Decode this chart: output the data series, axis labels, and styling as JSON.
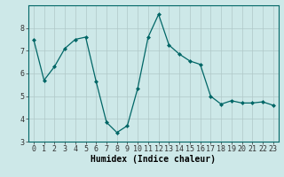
{
  "x": [
    0,
    1,
    2,
    3,
    4,
    5,
    6,
    7,
    8,
    9,
    10,
    11,
    12,
    13,
    14,
    15,
    16,
    17,
    18,
    19,
    20,
    21,
    22,
    23
  ],
  "y": [
    7.5,
    5.7,
    6.3,
    7.1,
    7.5,
    7.6,
    5.65,
    3.85,
    3.4,
    3.7,
    5.35,
    7.6,
    8.6,
    7.25,
    6.85,
    6.55,
    6.4,
    5.0,
    4.65,
    4.8,
    4.7,
    4.7,
    4.75,
    4.6
  ],
  "xlabel": "Humidex (Indice chaleur)",
  "ylim": [
    3,
    9
  ],
  "xlim": [
    -0.5,
    23.5
  ],
  "yticks": [
    3,
    4,
    5,
    6,
    7,
    8
  ],
  "xticks": [
    0,
    1,
    2,
    3,
    4,
    5,
    6,
    7,
    8,
    9,
    10,
    11,
    12,
    13,
    14,
    15,
    16,
    17,
    18,
    19,
    20,
    21,
    22,
    23
  ],
  "line_color": "#006666",
  "marker_color": "#006666",
  "bg_color": "#cde8e8",
  "grid_color": "#b0c8c8",
  "xlabel_fontsize": 7,
  "tick_fontsize": 6,
  "title_fontsize": 9
}
